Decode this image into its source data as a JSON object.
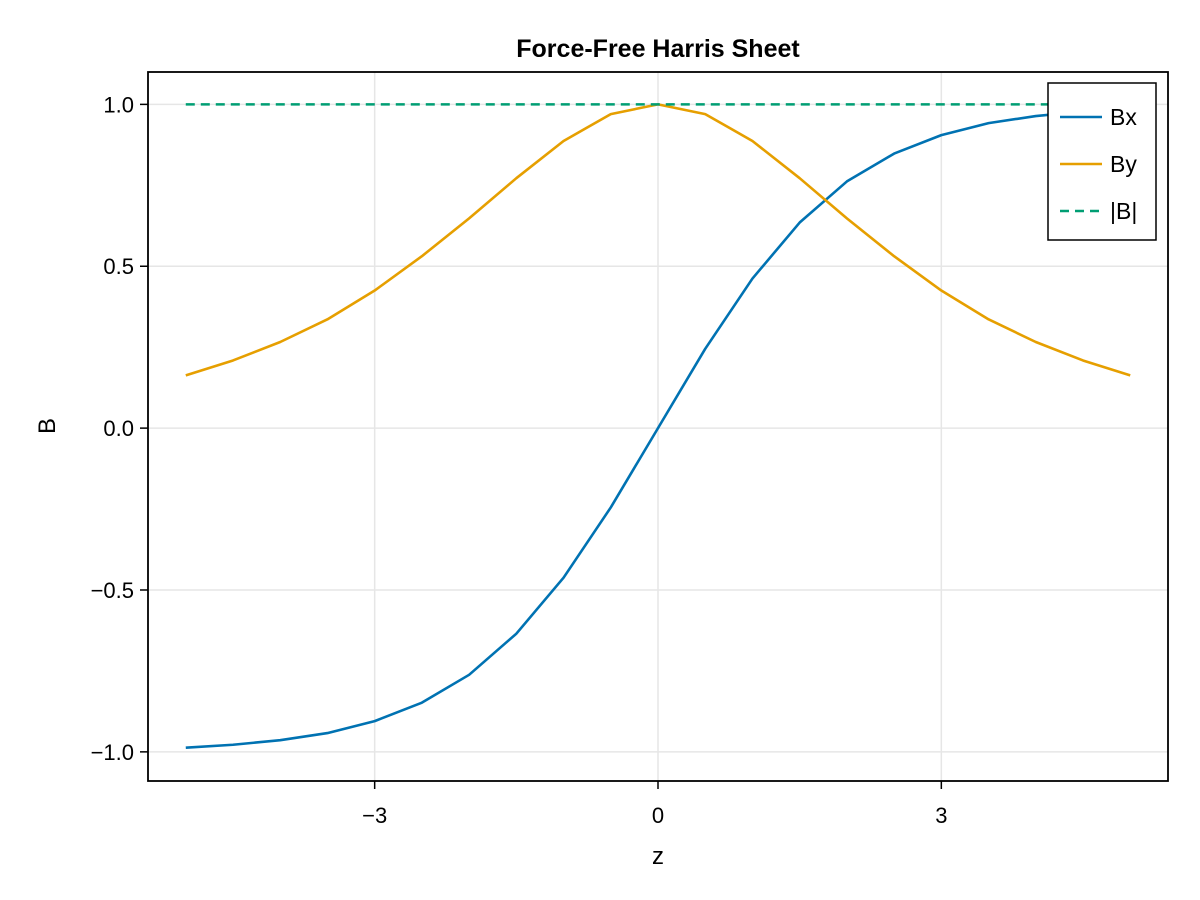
{
  "chart_data": {
    "type": "line",
    "title": "Force-Free Harris Sheet",
    "xlabel": "z",
    "ylabel": "B",
    "xlim": [
      -5.4,
      5.4
    ],
    "ylim": [
      -1.09,
      1.1
    ],
    "x_ticks": [
      -3,
      0,
      3
    ],
    "x_tick_labels": [
      "−3",
      "0",
      "3"
    ],
    "y_ticks": [
      -1.0,
      -0.5,
      0.0,
      0.5,
      1.0
    ],
    "y_tick_labels": [
      "−1.0",
      "−0.5",
      "0.0",
      "0.5",
      "1.0"
    ],
    "grid": true,
    "legend": "top-right",
    "x": [
      -5.0,
      -4.5,
      -4.0,
      -3.5,
      -3.0,
      -2.5,
      -2.0,
      -1.5,
      -1.0,
      -0.5,
      0.0,
      0.5,
      1.0,
      1.5,
      2.0,
      2.5,
      3.0,
      3.5,
      4.0,
      4.5,
      5.0
    ],
    "series": [
      {
        "name": "Bx",
        "color": "#0072b2",
        "style": "solid",
        "values": [
          -0.987,
          -0.978,
          -0.964,
          -0.942,
          -0.905,
          -0.848,
          -0.762,
          -0.635,
          -0.462,
          -0.245,
          0.0,
          0.245,
          0.462,
          0.635,
          0.762,
          0.848,
          0.905,
          0.942,
          0.964,
          0.978,
          0.987
        ]
      },
      {
        "name": "By",
        "color": "#e69f00",
        "style": "solid",
        "values": [
          0.163,
          0.209,
          0.266,
          0.336,
          0.425,
          0.531,
          0.648,
          0.772,
          0.887,
          0.97,
          1.0,
          0.97,
          0.887,
          0.772,
          0.648,
          0.531,
          0.425,
          0.336,
          0.266,
          0.209,
          0.163
        ]
      },
      {
        "name": "|B|",
        "color": "#009e73",
        "style": "dashed",
        "values": [
          1.0,
          1.0,
          1.0,
          1.0,
          1.0,
          1.0,
          1.0,
          1.0,
          1.0,
          1.0,
          1.0,
          1.0,
          1.0,
          1.0,
          1.0,
          1.0,
          1.0,
          1.0,
          1.0,
          1.0,
          1.0
        ]
      }
    ]
  }
}
